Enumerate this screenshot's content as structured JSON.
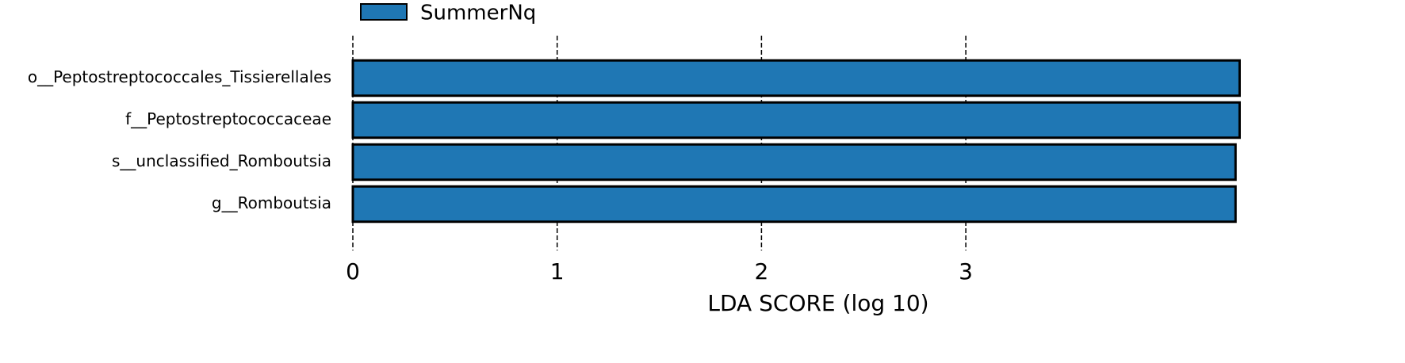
{
  "chart_data": {
    "type": "barh",
    "categories": [
      "o__Peptostreptococcales_Tissierellales",
      "f__Peptostreptococcaceae",
      "s__unclassified_Romboutsia",
      "g__Romboutsia"
    ],
    "series": [
      {
        "name": "SummerNq",
        "color": "#1f77b4",
        "values": [
          4.34,
          4.34,
          4.32,
          4.32
        ]
      }
    ],
    "xlabel": "LDA SCORE (log 10)",
    "xlim": [
      0,
      4.35
    ],
    "xticks": [
      0,
      1,
      2,
      3
    ],
    "grid": true,
    "legend": "top"
  }
}
